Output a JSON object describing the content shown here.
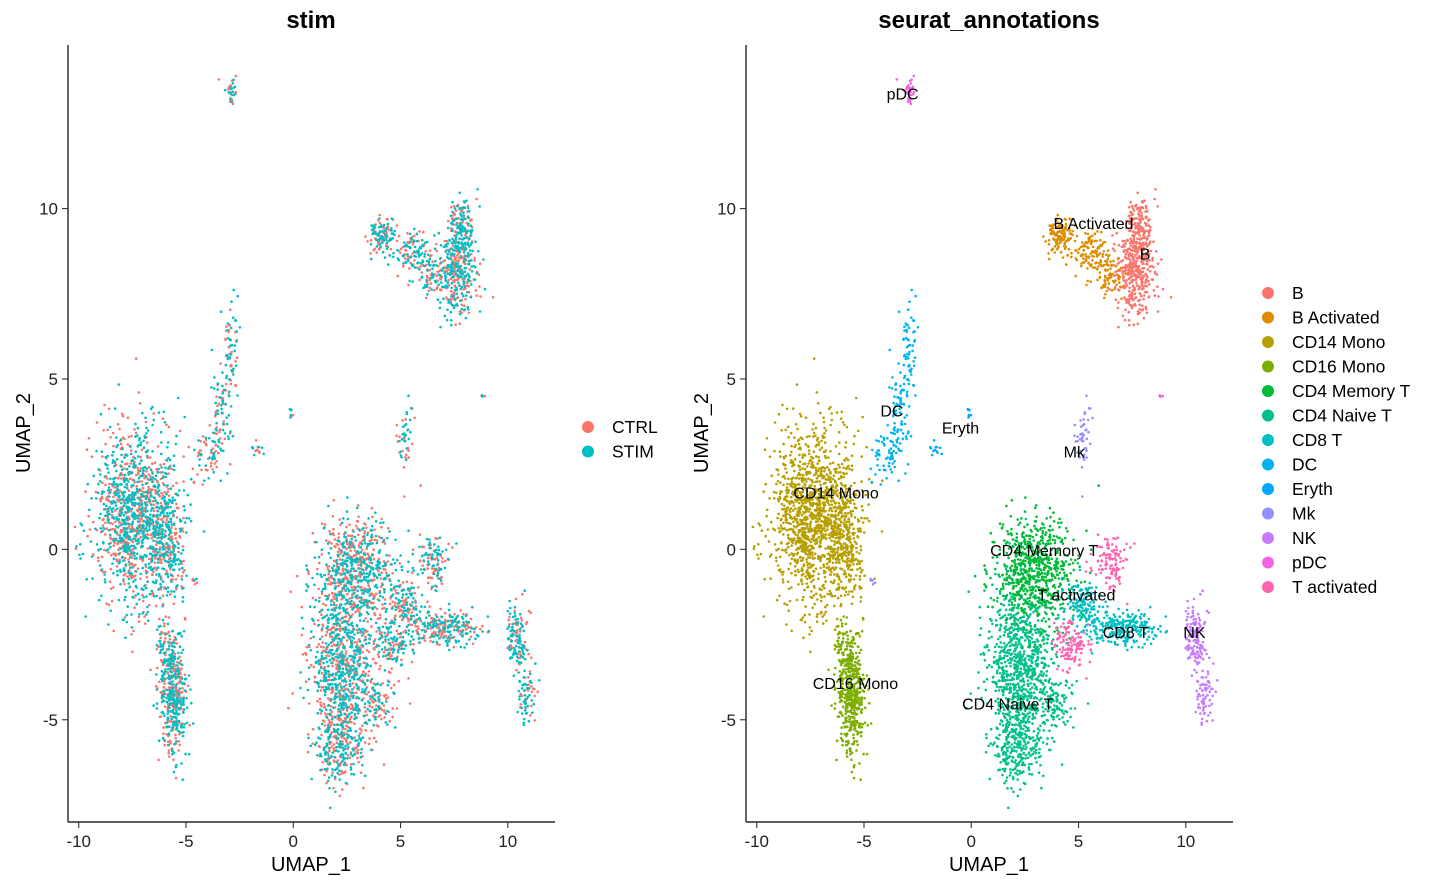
{
  "chart_data": [
    {
      "type": "scatter",
      "title": "stim",
      "xlabel": "UMAP_1",
      "ylabel": "UMAP_2",
      "xlim": [
        -10.5,
        12.2
      ],
      "ylim": [
        -8.0,
        14.8
      ],
      "x_ticks": [
        -10,
        -5,
        0,
        5,
        10
      ],
      "y_ticks": [
        -5,
        0,
        5,
        10
      ],
      "legend_position": "right",
      "series": [
        {
          "name": "CTRL",
          "color": "#F8766D"
        },
        {
          "name": "STIM",
          "color": "#00BFC4"
        }
      ]
    },
    {
      "type": "scatter",
      "title": "seurat_annotations",
      "xlabel": "UMAP_1",
      "ylabel": "UMAP_2",
      "xlim": [
        -10.5,
        12.2
      ],
      "ylim": [
        -8.0,
        14.8
      ],
      "x_ticks": [
        -10,
        -5,
        0,
        5,
        10
      ],
      "y_ticks": [
        -5,
        0,
        5,
        10
      ],
      "legend_position": "right",
      "series": [
        {
          "name": "B",
          "color": "#F8766D"
        },
        {
          "name": "B Activated",
          "color": "#DE8C00"
        },
        {
          "name": "CD14 Mono",
          "color": "#B79F00"
        },
        {
          "name": "CD16 Mono",
          "color": "#7CAE00"
        },
        {
          "name": "CD4 Memory T",
          "color": "#00BA38"
        },
        {
          "name": "CD4 Naive T",
          "color": "#00C08B"
        },
        {
          "name": "CD8 T",
          "color": "#00BFC4"
        },
        {
          "name": "DC",
          "color": "#00B4F0"
        },
        {
          "name": "Eryth",
          "color": "#00A9FF"
        },
        {
          "name": "Mk",
          "color": "#9590FF"
        },
        {
          "name": "NK",
          "color": "#C77CFF"
        },
        {
          "name": "pDC",
          "color": "#F564E3"
        },
        {
          "name": "T activated",
          "color": "#FF64B0"
        }
      ],
      "annotations": [
        {
          "text": "pDC",
          "x": -3.2,
          "y": 13.2
        },
        {
          "text": "B Activated",
          "x": 5.7,
          "y": 9.4
        },
        {
          "text": "B",
          "x": 8.1,
          "y": 8.5
        },
        {
          "text": "DC",
          "x": -3.7,
          "y": 3.9
        },
        {
          "text": "Eryth",
          "x": -0.5,
          "y": 3.4
        },
        {
          "text": "Mk",
          "x": 4.8,
          "y": 2.7
        },
        {
          "text": "CD14 Mono",
          "x": -6.3,
          "y": 1.5
        },
        {
          "text": "CD4 Memory T",
          "x": 3.4,
          "y": -0.2
        },
        {
          "text": "T activated",
          "x": 4.9,
          "y": -1.5
        },
        {
          "text": "CD8 T",
          "x": 7.2,
          "y": -2.6
        },
        {
          "text": "NK",
          "x": 10.4,
          "y": -2.6
        },
        {
          "text": "CD16 Mono",
          "x": -5.4,
          "y": -4.1
        },
        {
          "text": "CD4 Naive T",
          "x": 1.7,
          "y": -4.7
        }
      ]
    }
  ]
}
